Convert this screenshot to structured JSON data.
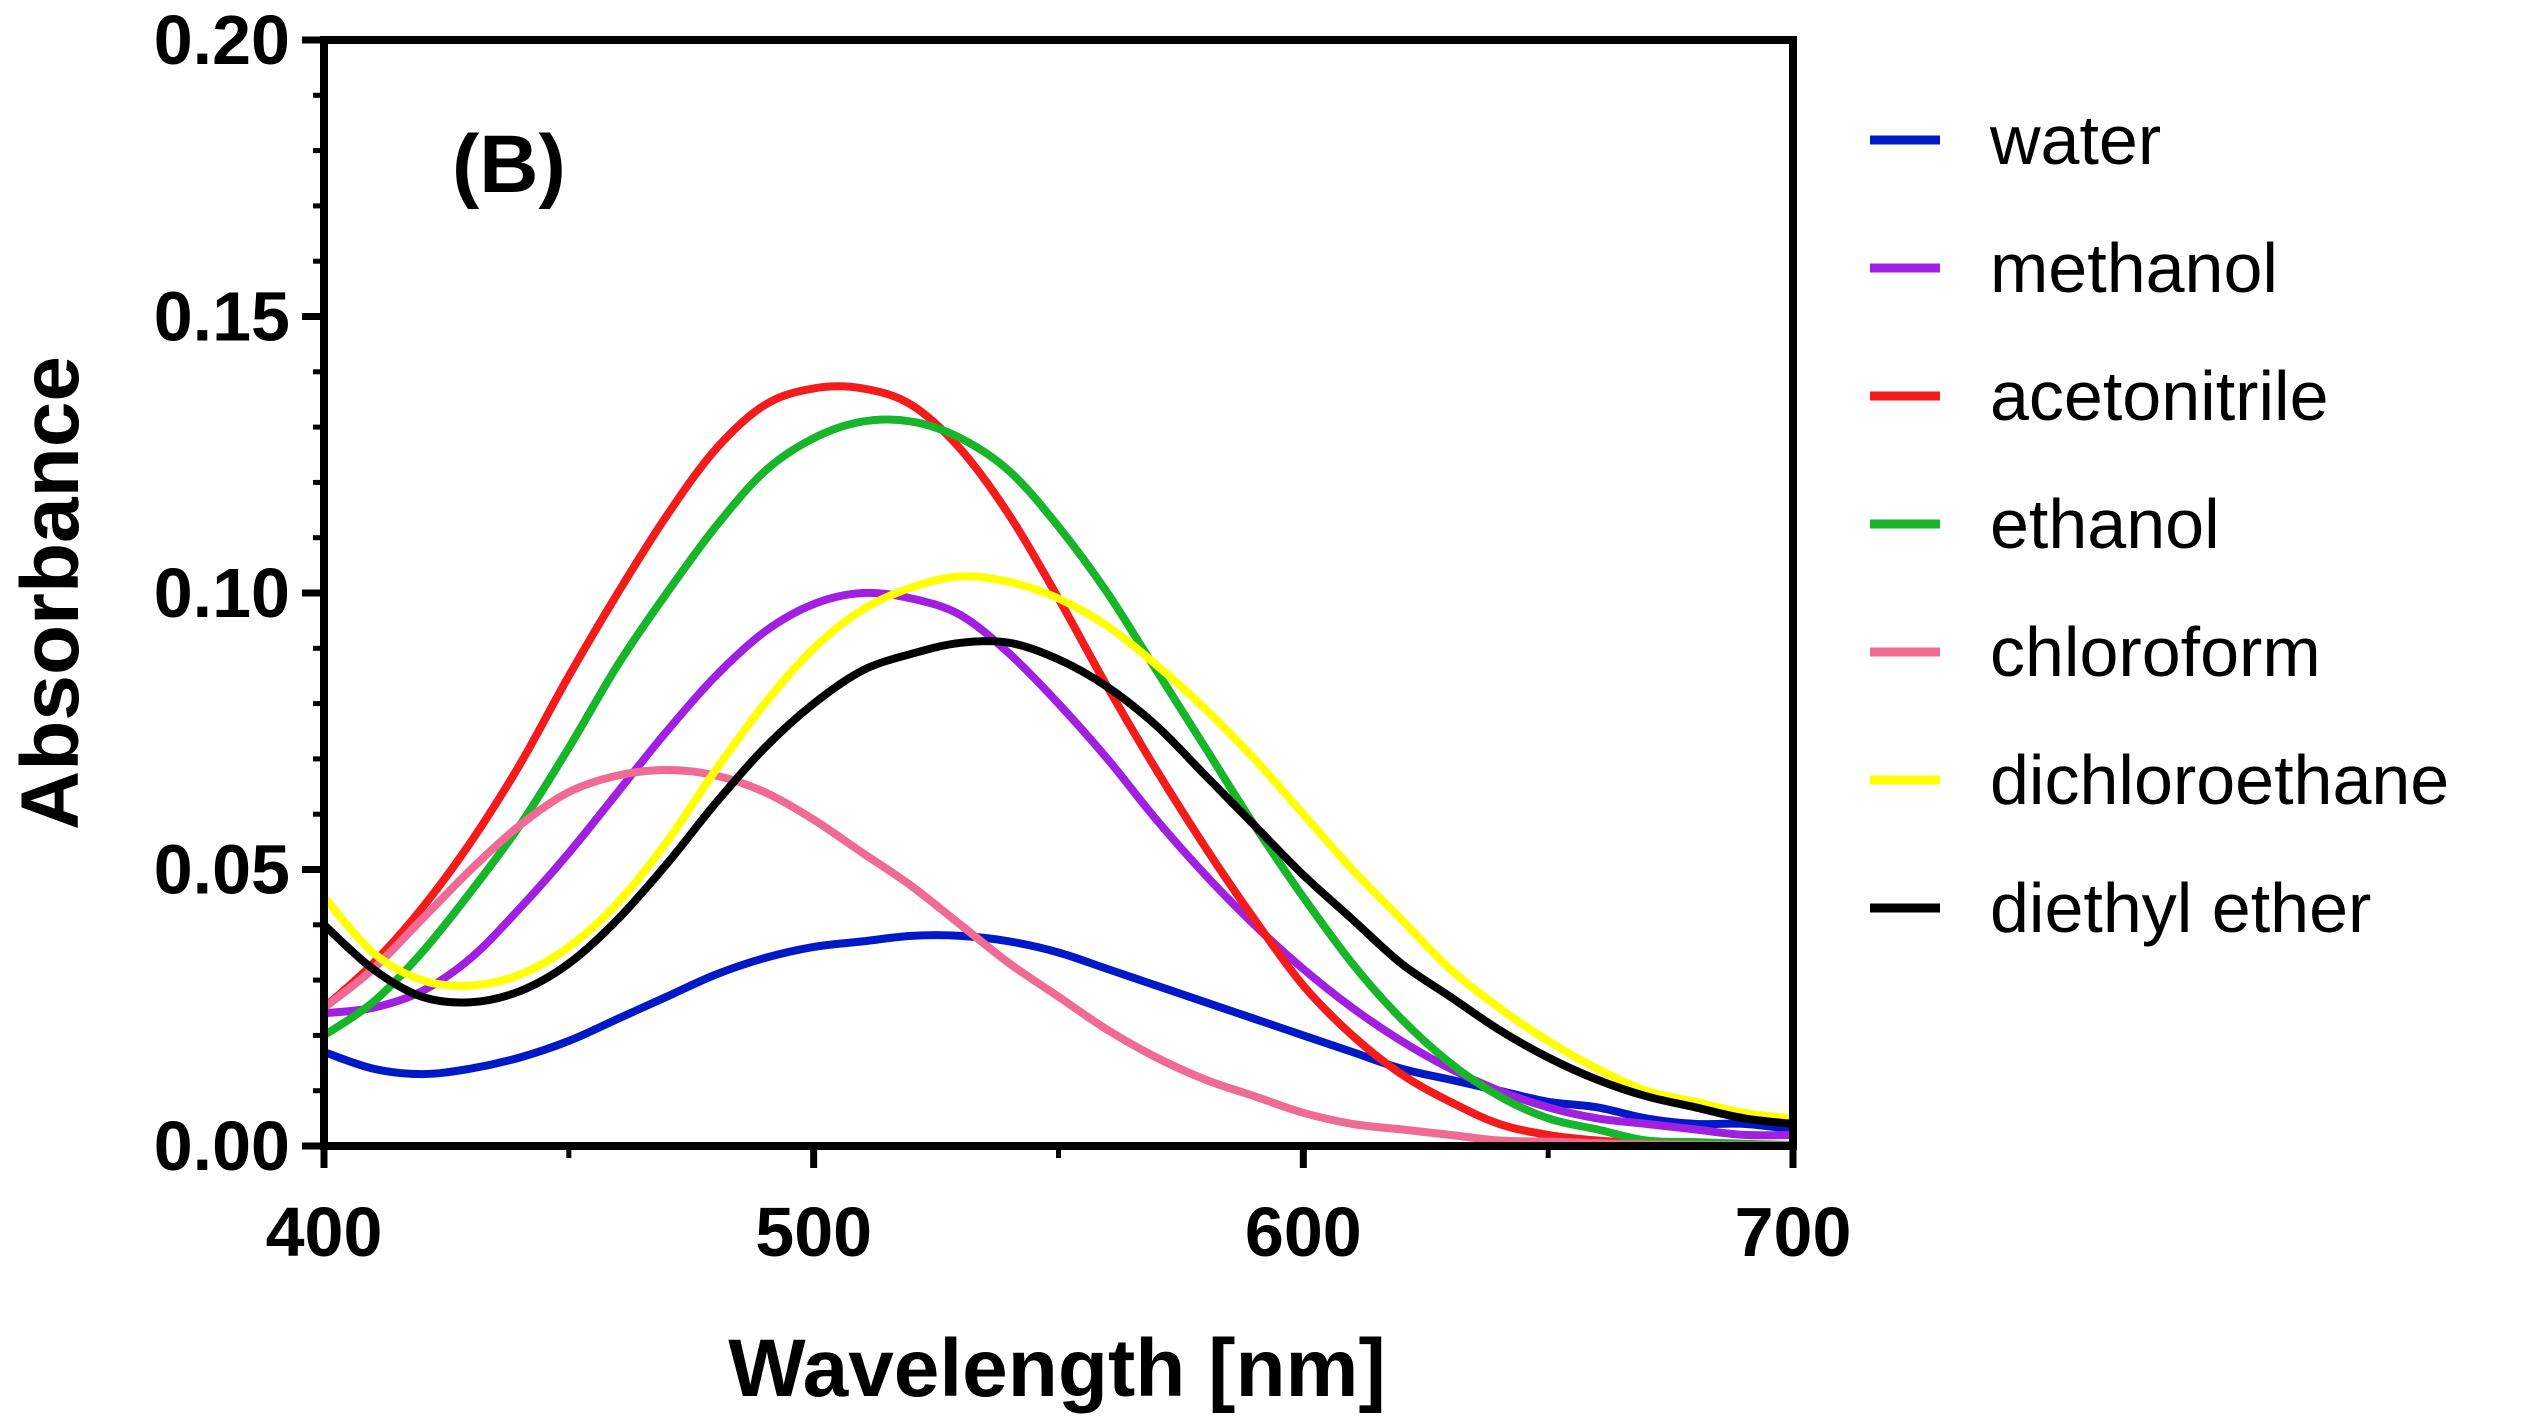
{
  "chart_data": {
    "type": "line",
    "panel_label": "(B)",
    "xlabel": "Wavelength [nm]",
    "ylabel": "Absorbance",
    "xlim": [
      400,
      700
    ],
    "ylim": [
      0,
      0.2
    ],
    "xticks": [
      400,
      500,
      600,
      700
    ],
    "xtick_labels": [
      "400",
      "500",
      "600",
      "700"
    ],
    "yticks": [
      0,
      0.05,
      0.1,
      0.15,
      0.2
    ],
    "ytick_labels": [
      "0.00",
      "0.05",
      "0.10",
      "0.15",
      "0.20"
    ],
    "grid": false,
    "legend_position": "right",
    "x": [
      400,
      410,
      420,
      430,
      440,
      450,
      460,
      470,
      480,
      490,
      500,
      510,
      520,
      530,
      540,
      550,
      560,
      570,
      580,
      590,
      600,
      610,
      620,
      630,
      640,
      650,
      660,
      670,
      680,
      690,
      700
    ],
    "series": [
      {
        "name": "water",
        "color": "#0019c8",
        "values": [
          0.017,
          0.014,
          0.013,
          0.014,
          0.016,
          0.019,
          0.023,
          0.027,
          0.031,
          0.034,
          0.036,
          0.037,
          0.038,
          0.038,
          0.037,
          0.035,
          0.032,
          0.029,
          0.026,
          0.023,
          0.02,
          0.017,
          0.014,
          0.012,
          0.01,
          0.008,
          0.007,
          0.005,
          0.004,
          0.004,
          0.003
        ]
      },
      {
        "name": "methanol",
        "color": "#a11fe0",
        "values": [
          0.024,
          0.025,
          0.028,
          0.034,
          0.043,
          0.053,
          0.064,
          0.075,
          0.085,
          0.093,
          0.098,
          0.1,
          0.099,
          0.096,
          0.089,
          0.08,
          0.07,
          0.059,
          0.049,
          0.04,
          0.032,
          0.025,
          0.019,
          0.014,
          0.01,
          0.007,
          0.005,
          0.004,
          0.003,
          0.002,
          0.002
        ]
      },
      {
        "name": "acetonitrile",
        "color": "#f41b1b",
        "values": [
          0.025,
          0.033,
          0.043,
          0.055,
          0.069,
          0.085,
          0.1,
          0.114,
          0.126,
          0.134,
          0.137,
          0.137,
          0.134,
          0.126,
          0.114,
          0.099,
          0.083,
          0.068,
          0.054,
          0.041,
          0.029,
          0.02,
          0.013,
          0.008,
          0.004,
          0.002,
          0.001,
          0.0005,
          0.0003,
          0.0002,
          0.0001
        ]
      },
      {
        "name": "ethanol",
        "color": "#17b52a",
        "values": [
          0.02,
          0.026,
          0.035,
          0.046,
          0.058,
          0.072,
          0.087,
          0.1,
          0.112,
          0.122,
          0.128,
          0.131,
          0.131,
          0.128,
          0.122,
          0.112,
          0.1,
          0.086,
          0.072,
          0.058,
          0.045,
          0.033,
          0.023,
          0.015,
          0.009,
          0.005,
          0.003,
          0.001,
          0.0007,
          0.0004,
          0.0002
        ]
      },
      {
        "name": "chloroform",
        "color": "#f06b94",
        "values": [
          0.025,
          0.032,
          0.041,
          0.05,
          0.058,
          0.064,
          0.067,
          0.068,
          0.067,
          0.064,
          0.059,
          0.053,
          0.047,
          0.04,
          0.033,
          0.027,
          0.021,
          0.016,
          0.012,
          0.009,
          0.006,
          0.004,
          0.003,
          0.002,
          0.001,
          0.0008,
          0.0005,
          0.0003,
          0.0002,
          0.0001,
          0.0001
        ]
      },
      {
        "name": "dichloroethane",
        "color": "#ffff00",
        "values": [
          0.045,
          0.035,
          0.03,
          0.029,
          0.031,
          0.036,
          0.044,
          0.055,
          0.068,
          0.08,
          0.09,
          0.097,
          0.101,
          0.103,
          0.102,
          0.099,
          0.094,
          0.087,
          0.079,
          0.07,
          0.06,
          0.05,
          0.041,
          0.032,
          0.025,
          0.019,
          0.014,
          0.01,
          0.008,
          0.006,
          0.005
        ]
      },
      {
        "name": "diethyl ether",
        "color": "#000000",
        "values": [
          0.04,
          0.032,
          0.027,
          0.026,
          0.028,
          0.033,
          0.041,
          0.051,
          0.062,
          0.072,
          0.08,
          0.086,
          0.089,
          0.091,
          0.091,
          0.088,
          0.083,
          0.076,
          0.067,
          0.058,
          0.049,
          0.041,
          0.033,
          0.027,
          0.021,
          0.016,
          0.012,
          0.009,
          0.007,
          0.005,
          0.004
        ]
      }
    ]
  }
}
